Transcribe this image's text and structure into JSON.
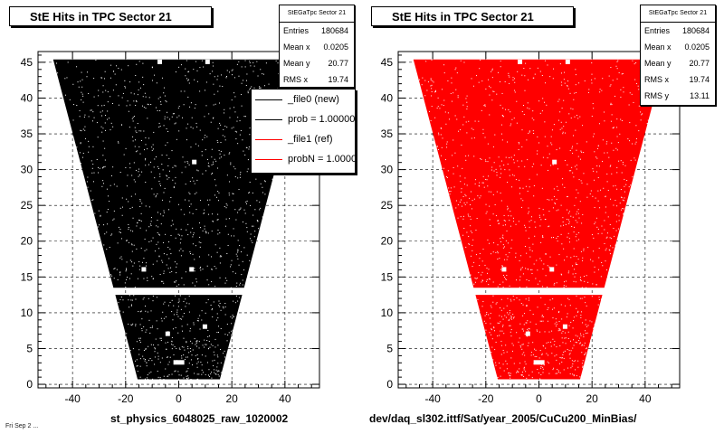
{
  "panels": [
    {
      "title": "StE Hits in TPC Sector 21",
      "stats": {
        "name": "StEGaTpc Sector 21",
        "rows": [
          {
            "label": "Entries",
            "value": "180684"
          },
          {
            "label": "Mean x",
            "value": "0.0205"
          },
          {
            "label": "Mean y",
            "value": "20.77"
          },
          {
            "label": "RMS x",
            "value": "19.74"
          }
        ]
      },
      "legend": [
        {
          "label": "_file0 (new)",
          "color": "#000000"
        },
        {
          "label": "prob = 1.000000",
          "color": "#000000"
        },
        {
          "label": "_file1 (ref)",
          "color": "#ff0000"
        },
        {
          "label": "probN = 1.000000",
          "color": "#ff0000"
        }
      ],
      "caption": "st_physics_6048025_raw_1020002",
      "marker_color": "#000000"
    },
    {
      "title": "StE Hits in TPC Sector 21",
      "stats": {
        "name": "StEGaTpc Sector 21",
        "rows": [
          {
            "label": "Entries",
            "value": "180684"
          },
          {
            "label": "Mean x",
            "value": "0.0205"
          },
          {
            "label": "Mean y",
            "value": "20.77"
          },
          {
            "label": "RMS x",
            "value": "19.74"
          },
          {
            "label": "RMS y",
            "value": "13.11"
          }
        ]
      },
      "caption": "dev/daq_sl302.ittf/Sat/year_2005/CuCu200_MinBias/",
      "marker_color": "#ff0000"
    }
  ],
  "footer_stamp": "Fri Sep 2 ...",
  "chart_data": [
    {
      "type": "scatter",
      "title": "StE Hits in TPC Sector 21",
      "xlabel": "",
      "ylabel": "",
      "xlim": [
        -53,
        53
      ],
      "ylim": [
        -0.5,
        46.5
      ],
      "xticks": [
        -40,
        -20,
        0,
        20,
        40
      ],
      "yticks": [
        0,
        5,
        10,
        15,
        20,
        25,
        30,
        35,
        40,
        45
      ],
      "grid": true,
      "legend_position": "top-right",
      "series_color": "#000000",
      "x_range_at_y0": [
        -15,
        15
      ],
      "x_range_at_y45": [
        -47,
        47
      ],
      "gap_between_rows": [
        12.5,
        13.5
      ],
      "entries": 180684,
      "mean_x": 0.0205,
      "mean_y": 20.77,
      "rms_x": 19.74
    },
    {
      "type": "scatter",
      "title": "StE Hits in TPC Sector 21",
      "xlabel": "",
      "ylabel": "",
      "xlim": [
        -53,
        53
      ],
      "ylim": [
        -0.5,
        46.5
      ],
      "xticks": [
        -40,
        -20,
        0,
        20,
        40
      ],
      "yticks": [
        0,
        5,
        10,
        15,
        20,
        25,
        30,
        35,
        40,
        45
      ],
      "grid": true,
      "series_color": "#ff0000",
      "x_range_at_y0": [
        -15,
        15
      ],
      "x_range_at_y45": [
        -47,
        47
      ],
      "gap_between_rows": [
        12.5,
        13.5
      ],
      "entries": 180684,
      "mean_x": 0.0205,
      "mean_y": 20.77,
      "rms_x": 19.74,
      "rms_y": 13.11
    }
  ]
}
